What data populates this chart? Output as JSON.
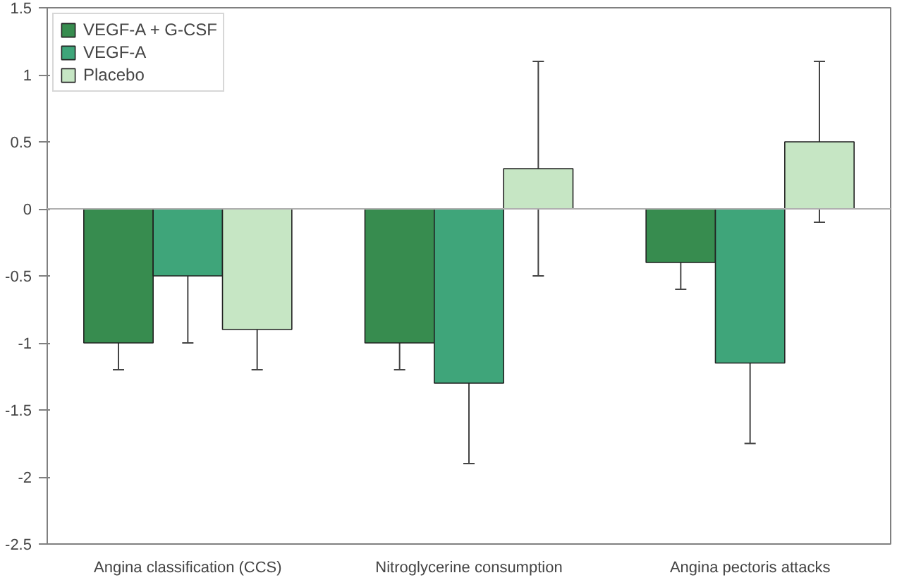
{
  "chart_data": {
    "type": "bar",
    "categories": [
      "Angina classification (CCS)",
      "Nitroglycerine consumption",
      "Angina pectoris attacks"
    ],
    "series": [
      {
        "name": "VEGF-A + G-CSF",
        "color": "#378c4f",
        "values": [
          -1,
          -1,
          -0.4
        ],
        "errors": [
          0.2,
          0.2,
          0.2
        ]
      },
      {
        "name": "VEGF-A",
        "color": "#3fa57a",
        "values": [
          -0.5,
          -1.3,
          -1.15
        ],
        "errors": [
          0.5,
          0.6,
          0.6
        ]
      },
      {
        "name": "Placebo",
        "color": "#c6e6c4",
        "values": [
          -0.9,
          0.3,
          0.5
        ],
        "errors": [
          0.3,
          0.8,
          0.6
        ]
      }
    ],
    "ylim": [
      -2.5,
      1.5
    ],
    "yticks": [
      1.5,
      1,
      0.5,
      0,
      -0.5,
      -1,
      -1.5,
      -2,
      -2.5
    ],
    "ref_lines": [
      {
        "axis": "y",
        "value": 0,
        "label": null,
        "color": "#b0b0b0"
      }
    ],
    "grid": false,
    "legend": "top left"
  }
}
